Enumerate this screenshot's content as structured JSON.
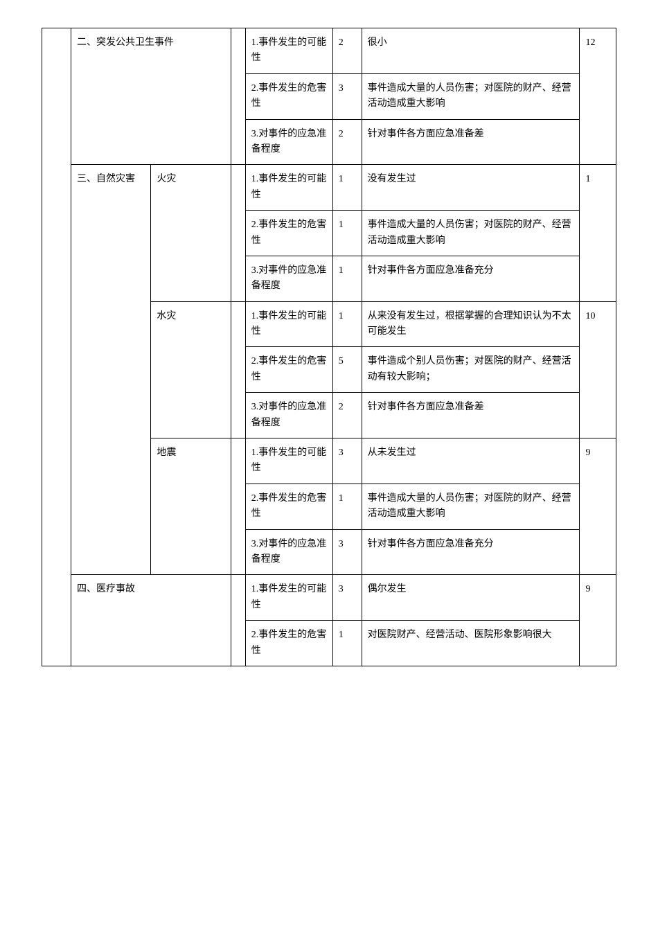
{
  "rows": [
    {
      "category": "二、突发公共卫生事件",
      "categoryColspan": 2,
      "categoryRowspan": 3,
      "items": [
        {
          "item": "1.事件发生的可能性",
          "score": "2",
          "desc": "很小"
        },
        {
          "item": "2.事件发生的危害性",
          "score": "3",
          "desc": "事件造成大量的人员伤害；对医院的财产、经营活动造成重大影响"
        },
        {
          "item": "3.对事件的应急准备程度",
          "score": "2",
          "desc": "针对事件各方面应急准备差"
        }
      ],
      "total": "12"
    },
    {
      "category": "三、自然灾害",
      "categoryRowspan": 9,
      "subs": [
        {
          "sub": "火灾",
          "subRowspan": 3,
          "items": [
            {
              "item": "1.事件发生的可能性",
              "score": "1",
              "desc": "没有发生过"
            },
            {
              "item": "2.事件发生的危害性",
              "score": "1",
              "desc": "事件造成大量的人员伤害；对医院的财产、经营活动造成重大影响"
            },
            {
              "item": "3.对事件的应急准备程度",
              "score": "1",
              "desc": "针对事件各方面应急准备充分"
            }
          ],
          "total": "1"
        },
        {
          "sub": "水灾",
          "subRowspan": 3,
          "items": [
            {
              "item": "1.事件发生的可能性",
              "score": "1",
              "desc": "从来没有发生过，根据掌握的合理知识认为不太可能发生"
            },
            {
              "item": "2.事件发生的危害性",
              "score": "5",
              "desc": "事件造成个别人员伤害；对医院的财产、经营活动有较大影响；"
            },
            {
              "item": "3.对事件的应急准备程度",
              "score": "2",
              "desc": "针对事件各方面应急准备差"
            }
          ],
          "total": "10"
        },
        {
          "sub": "地震",
          "subRowspan": 3,
          "items": [
            {
              "item": "1.事件发生的可能性",
              "score": "3",
              "desc": "从未发生过"
            },
            {
              "item": "2.事件发生的危害性",
              "score": "1",
              "desc": "事件造成大量的人员伤害；对医院的财产、经营活动造成重大影响"
            },
            {
              "item": "3.对事件的应急准备程度",
              "score": "3",
              "desc": "针对事件各方面应急准备充分"
            }
          ],
          "total": "9"
        }
      ]
    },
    {
      "category": "四、医疗事故",
      "categoryColspan": 2,
      "categoryRowspan": 2,
      "items": [
        {
          "item": "1.事件发生的可能性",
          "score": "3",
          "desc": "偶尔发生"
        },
        {
          "item": "2.事件发生的危害性",
          "score": "1",
          "desc": "对医院财产、经营活动、医院形象影响很大"
        }
      ],
      "total": "9"
    }
  ]
}
